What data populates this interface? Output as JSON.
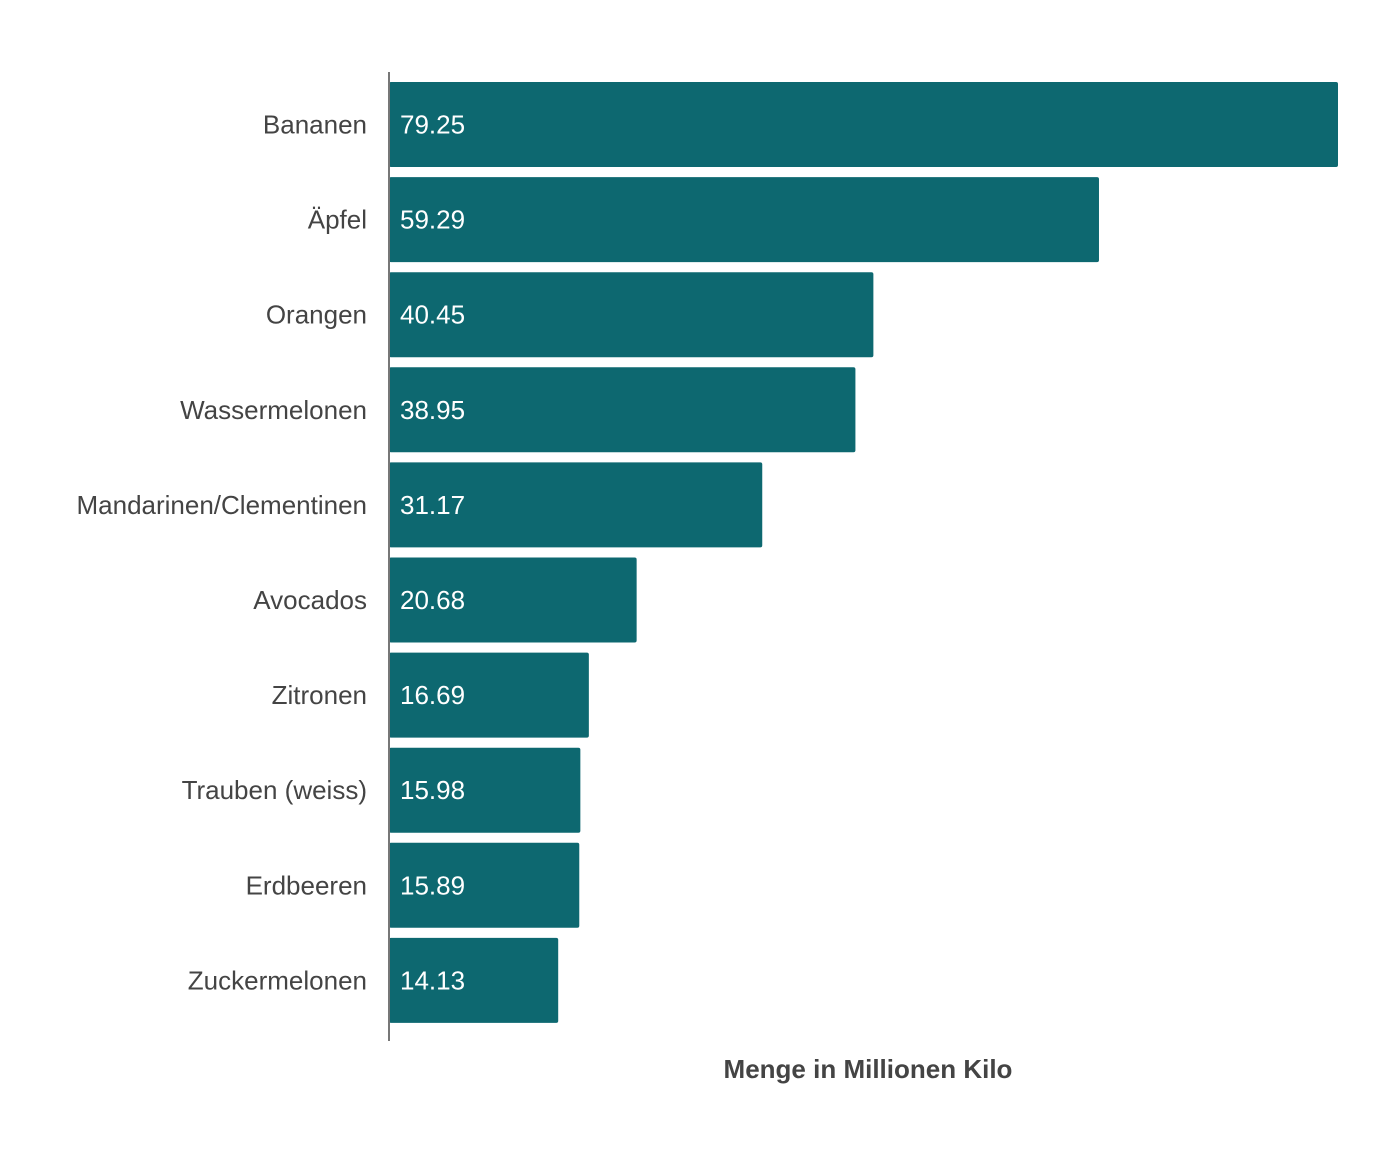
{
  "chart_data": {
    "type": "bar",
    "orientation": "horizontal",
    "title": "",
    "xlabel": "Menge in Millionen Kilo",
    "ylabel": "",
    "categories": [
      "Bananen",
      "Äpfel",
      "Orangen",
      "Wassermelonen",
      "Mandarinen/Clementinen",
      "Avocados",
      "Zitronen",
      "Trauben (weiss)",
      "Erdbeeren",
      "Zuckermelonen"
    ],
    "values": [
      79.25,
      59.29,
      40.45,
      38.95,
      31.17,
      20.68,
      16.69,
      15.98,
      15.89,
      14.13
    ],
    "data_labels": [
      "79.25",
      "59.29",
      "40.45",
      "38.95",
      "31.17",
      "20.68",
      "16.69",
      "15.98",
      "15.89",
      "14.13"
    ],
    "xlim": [
      0,
      79.25
    ],
    "grid": false,
    "legend": "none",
    "colors": {
      "bar": "#0d6870",
      "label": "#444444",
      "axis": "#777777"
    }
  }
}
